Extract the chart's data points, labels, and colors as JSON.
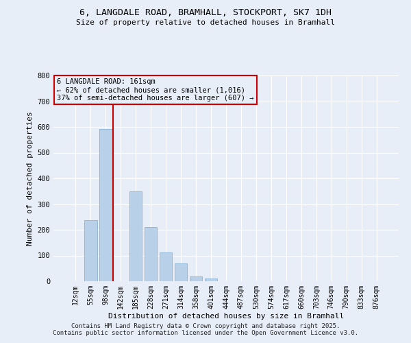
{
  "title": "6, LANGDALE ROAD, BRAMHALL, STOCKPORT, SK7 1DH",
  "subtitle": "Size of property relative to detached houses in Bramhall",
  "xlabel": "Distribution of detached houses by size in Bramhall",
  "ylabel": "Number of detached properties",
  "categories": [
    "12sqm",
    "55sqm",
    "98sqm",
    "142sqm",
    "185sqm",
    "228sqm",
    "271sqm",
    "314sqm",
    "358sqm",
    "401sqm",
    "444sqm",
    "487sqm",
    "530sqm",
    "574sqm",
    "617sqm",
    "660sqm",
    "703sqm",
    "746sqm",
    "790sqm",
    "833sqm",
    "876sqm"
  ],
  "values": [
    0,
    237,
    593,
    0,
    350,
    210,
    113,
    70,
    18,
    12,
    0,
    0,
    0,
    0,
    0,
    0,
    0,
    0,
    0,
    0,
    0
  ],
  "bar_color": "#b8d0e8",
  "highlight_color": "#cc0000",
  "annotation_line1": "6 LANGDALE ROAD: 161sqm",
  "annotation_line2": "← 62% of detached houses are smaller (1,016)",
  "annotation_line3": "37% of semi-detached houses are larger (607) →",
  "annotation_box_color": "#cc0000",
  "ylim": [
    0,
    800
  ],
  "yticks": [
    0,
    100,
    200,
    300,
    400,
    500,
    600,
    700,
    800
  ],
  "footer_line1": "Contains HM Land Registry data © Crown copyright and database right 2025.",
  "footer_line2": "Contains public sector information licensed under the Open Government Licence v3.0.",
  "bg_color": "#e8eef8",
  "grid_color": "#ffffff",
  "red_line_x": 3.5
}
